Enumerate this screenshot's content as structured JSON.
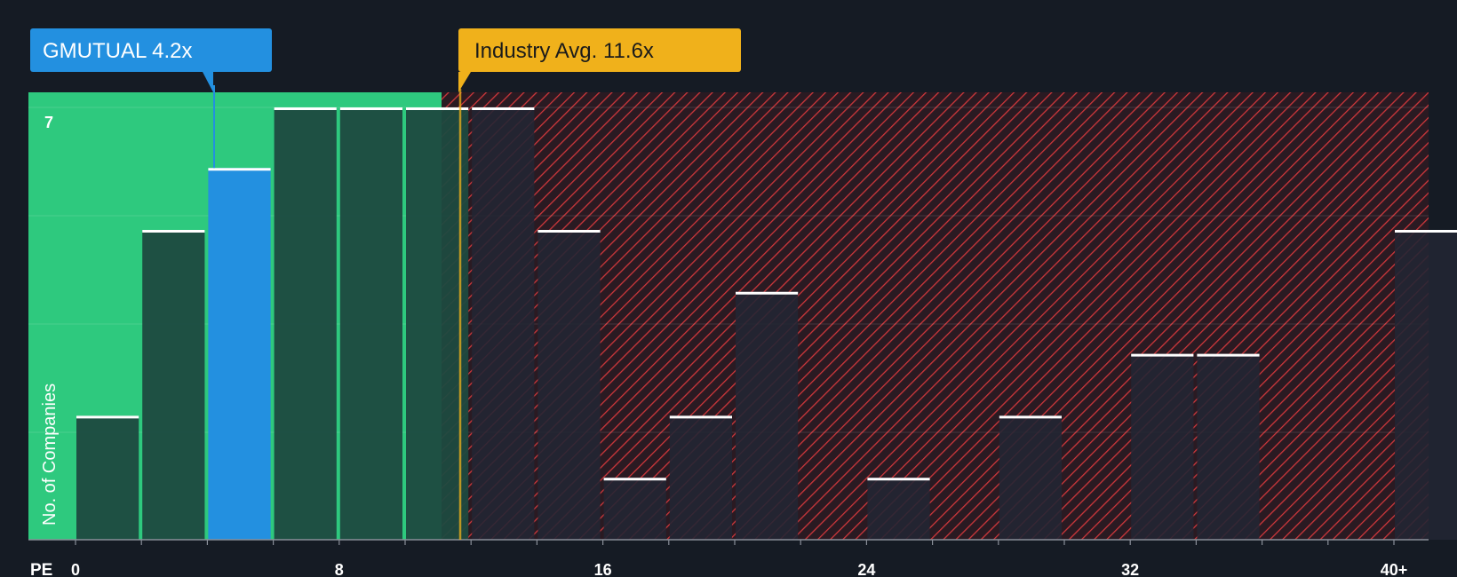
{
  "colors": {
    "background": "#151b24",
    "fair_zone": "#2ec97e",
    "overvalued_zone": "#e03a3e",
    "bar_dark": "#1e4a40",
    "bar_highlight": "#2390e0",
    "bar_over": "#222633",
    "company_callout": "#2390e0",
    "industry_callout": "#f0b11b"
  },
  "company_label": {
    "name": "GMUTUAL",
    "value": "4.2x"
  },
  "industry_label": {
    "name": "Industry Avg.",
    "value": "11.6x"
  },
  "chart_data": {
    "type": "bar",
    "title": "",
    "xlabel": "PE",
    "ylabel": "No. of Companies",
    "y_tick_label": "7",
    "xlim": [
      0,
      41.6
    ],
    "ylim": [
      0,
      7
    ],
    "x_ticks": [
      "0",
      "8",
      "16",
      "24",
      "32",
      "40+"
    ],
    "company_pe": 4.2,
    "industry_avg_pe": 11.6,
    "bin_width": 2,
    "bins": [
      {
        "start": 0,
        "count": 2,
        "zone": "fair"
      },
      {
        "start": 2,
        "count": 5,
        "zone": "fair"
      },
      {
        "start": 4,
        "count": 6,
        "zone": "company"
      },
      {
        "start": 6,
        "count": 7,
        "zone": "fair"
      },
      {
        "start": 8,
        "count": 7,
        "zone": "fair"
      },
      {
        "start": 10,
        "count": 7,
        "zone": "fair"
      },
      {
        "start": 12,
        "count": 7,
        "zone": "over"
      },
      {
        "start": 14,
        "count": 5,
        "zone": "over"
      },
      {
        "start": 16,
        "count": 1,
        "zone": "over"
      },
      {
        "start": 18,
        "count": 2,
        "zone": "over"
      },
      {
        "start": 20,
        "count": 4,
        "zone": "over"
      },
      {
        "start": 24,
        "count": 1,
        "zone": "over"
      },
      {
        "start": 28,
        "count": 2,
        "zone": "over"
      },
      {
        "start": 32,
        "count": 3,
        "zone": "over"
      },
      {
        "start": 34,
        "count": 3,
        "zone": "over"
      },
      {
        "start": 40,
        "count": 5,
        "zone": "over"
      }
    ]
  }
}
